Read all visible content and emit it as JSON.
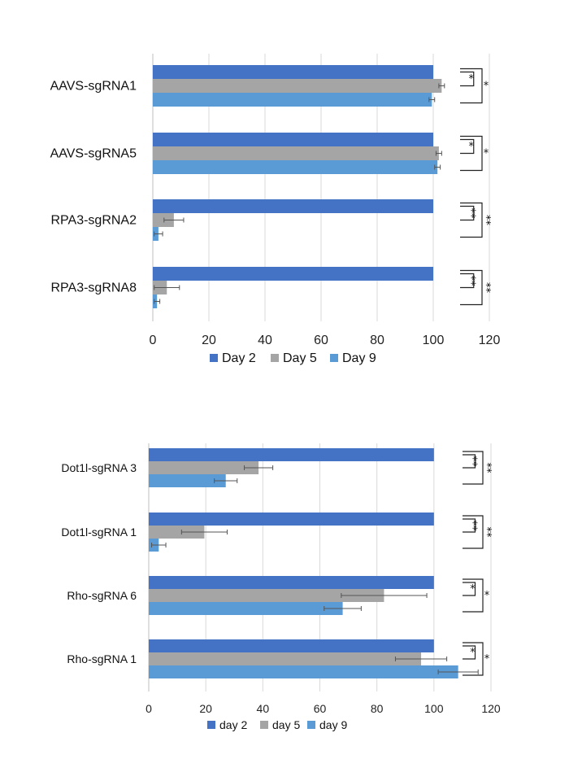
{
  "colors": {
    "series1": "#4472C4",
    "series2": "#A5A5A5",
    "series3": "#5B9BD5"
  },
  "chart_data": [
    {
      "type": "bar",
      "orientation": "horizontal",
      "categories": [
        "AAVS-sgRNA1",
        "AAVS-sgRNA5",
        "RPA3-sgRNA2",
        "RPA3-sgRNA8"
      ],
      "series": [
        {
          "name": "Day 2",
          "values": [
            100,
            100,
            100,
            100
          ],
          "errors": [
            0,
            0,
            0,
            0
          ]
        },
        {
          "name": "Day 5",
          "values": [
            103,
            102,
            7.5,
            5
          ],
          "errors": [
            1,
            1,
            3.5,
            4.5
          ]
        },
        {
          "name": "Day 9",
          "values": [
            99.5,
            101.5,
            2,
            1.5
          ],
          "errors": [
            1,
            1,
            1.5,
            1
          ]
        }
      ],
      "xlim": [
        0,
        120
      ],
      "xticks": [
        "0",
        "20",
        "40",
        "60",
        "80",
        "100",
        "120"
      ],
      "grid": true,
      "legend": "bottom",
      "annotations": [
        {
          "inner": "*",
          "outer": "*"
        },
        {
          "inner": "*",
          "outer": "*"
        },
        {
          "inner": "**",
          "outer": "**"
        },
        {
          "inner": "**",
          "outer": "**"
        }
      ]
    },
    {
      "type": "bar",
      "orientation": "horizontal",
      "categories": [
        "Dot1l-sgRNA 3",
        "Dot1l-sgRNA 1",
        "Rho-sgRNA 6",
        "Rho-sgRNA 1"
      ],
      "series": [
        {
          "name": "day 2",
          "values": [
            100,
            100,
            100,
            100
          ],
          "errors": [
            0,
            0,
            0,
            0
          ]
        },
        {
          "name": "day 5",
          "values": [
            38.5,
            19.5,
            82.5,
            95.5
          ],
          "errors": [
            5,
            8,
            15,
            9
          ]
        },
        {
          "name": "day 9",
          "values": [
            27,
            3.5,
            68,
            108.5
          ],
          "errors": [
            4,
            2.5,
            6.5,
            7
          ]
        }
      ],
      "xlim": [
        0,
        120
      ],
      "xticks": [
        "0",
        "20",
        "40",
        "60",
        "80",
        "100",
        "120"
      ],
      "grid": true,
      "legend": "bottom",
      "annotations": [
        {
          "inner": "**",
          "outer": "**"
        },
        {
          "inner": "**",
          "outer": "**"
        },
        {
          "inner": "*",
          "outer": "*"
        },
        {
          "inner": "*",
          "outer": "*"
        }
      ]
    }
  ]
}
